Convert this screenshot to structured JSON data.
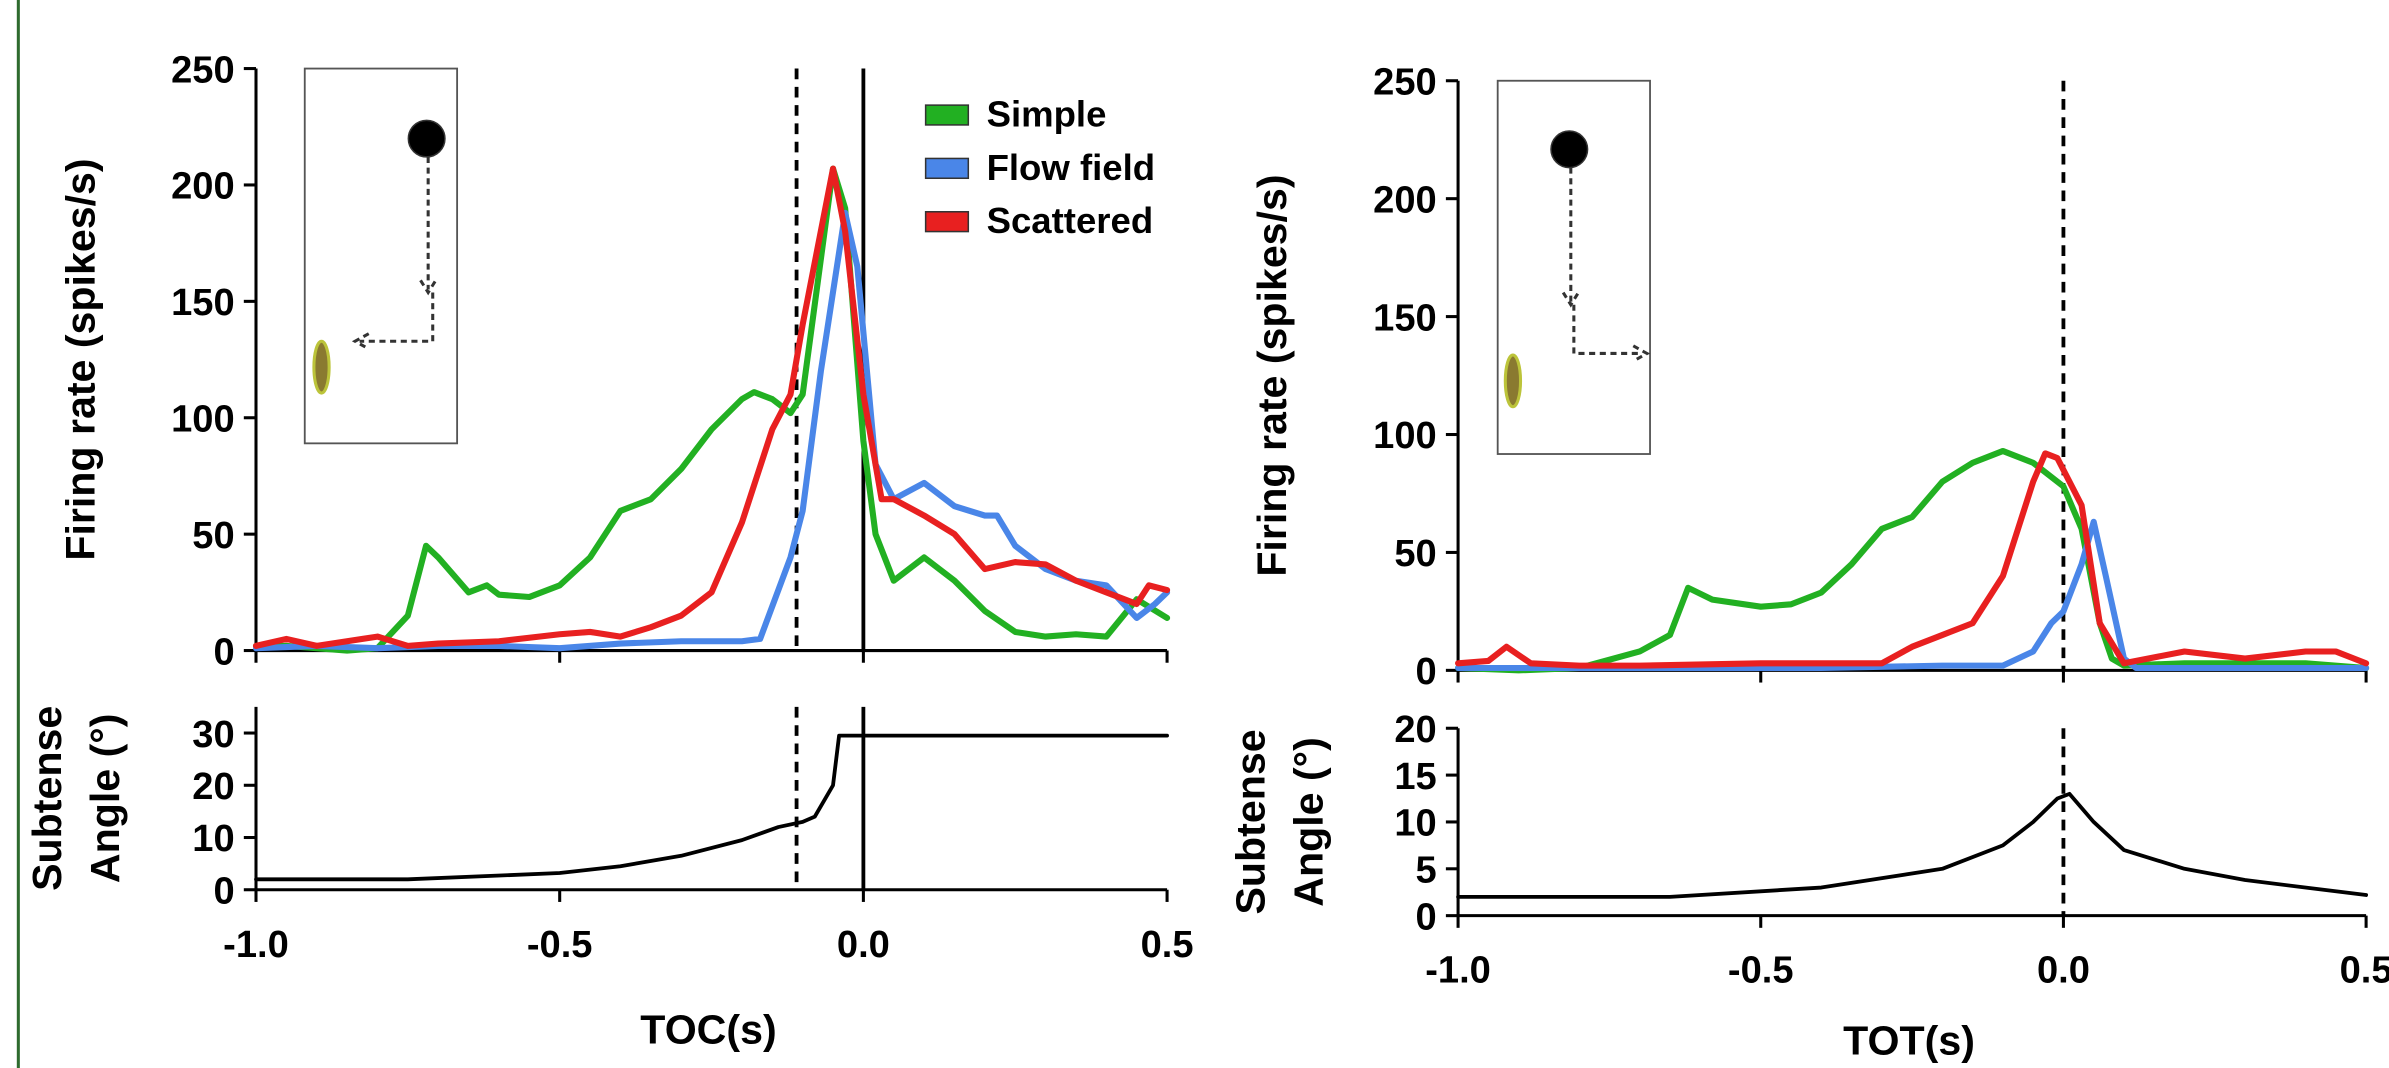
{
  "chart_data": [
    {
      "type": "line",
      "ylabel": [
        "Firing rate (spikes/s)"
      ],
      "xlim": [
        -1,
        0.5
      ],
      "ylim": [
        0,
        250
      ],
      "xticks": [
        -1,
        -0.5,
        0,
        0.5
      ],
      "show_xtick_labels": false,
      "yticks": [
        0,
        50,
        100,
        150,
        200,
        250
      ],
      "legend": "upper right",
      "vlines": [
        {
          "x": -0.11,
          "style": "dashed"
        },
        {
          "x": 0,
          "style": "solid"
        }
      ],
      "series": [
        {
          "name": "Simple",
          "color": "#22b022",
          "x": [
            -1.0,
            -0.95,
            -0.9,
            -0.85,
            -0.8,
            -0.75,
            -0.72,
            -0.7,
            -0.65,
            -0.62,
            -0.6,
            -0.55,
            -0.5,
            -0.45,
            -0.4,
            -0.35,
            -0.3,
            -0.25,
            -0.2,
            -0.18,
            -0.15,
            -0.12,
            -0.1,
            -0.05,
            -0.03,
            0,
            0.02,
            0.05,
            0.1,
            0.15,
            0.2,
            0.25,
            0.3,
            0.35,
            0.4,
            0.45,
            0.5
          ],
          "values": [
            2,
            2,
            1,
            0,
            1,
            15,
            45,
            40,
            25,
            28,
            24,
            23,
            28,
            40,
            60,
            65,
            78,
            95,
            108,
            111,
            108,
            102,
            110,
            207,
            190,
            90,
            50,
            30,
            40,
            30,
            17,
            8,
            6,
            7,
            6,
            22,
            14
          ]
        },
        {
          "name": "Flow field",
          "color": "#4a86e8",
          "x": [
            -1.0,
            -0.9,
            -0.8,
            -0.7,
            -0.6,
            -0.5,
            -0.4,
            -0.3,
            -0.2,
            -0.17,
            -0.12,
            -0.1,
            -0.07,
            -0.03,
            -0.01,
            0.02,
            0.05,
            0.1,
            0.15,
            0.2,
            0.22,
            0.25,
            0.3,
            0.35,
            0.4,
            0.45,
            0.48,
            0.5
          ],
          "values": [
            1,
            2,
            1,
            2,
            2,
            1,
            3,
            4,
            4,
            5,
            40,
            60,
            120,
            188,
            165,
            80,
            65,
            72,
            62,
            58,
            58,
            45,
            35,
            30,
            28,
            14,
            20,
            25
          ]
        },
        {
          "name": "Scattered",
          "color": "#e82020",
          "x": [
            -1.0,
            -0.95,
            -0.9,
            -0.8,
            -0.75,
            -0.7,
            -0.6,
            -0.5,
            -0.45,
            -0.4,
            -0.35,
            -0.3,
            -0.25,
            -0.2,
            -0.15,
            -0.12,
            -0.1,
            -0.05,
            -0.03,
            0,
            0.03,
            0.05,
            0.1,
            0.15,
            0.2,
            0.25,
            0.3,
            0.35,
            0.4,
            0.45,
            0.47,
            0.5
          ],
          "values": [
            2,
            5,
            2,
            6,
            2,
            3,
            4,
            7,
            8,
            6,
            10,
            15,
            25,
            55,
            95,
            110,
            140,
            207,
            180,
            110,
            65,
            65,
            58,
            50,
            35,
            38,
            37,
            30,
            25,
            20,
            28,
            26
          ]
        }
      ]
    },
    {
      "type": "line",
      "ylabel": [
        "Subtense",
        "Angle (°)"
      ],
      "xlabel": "TOC(s)",
      "xlim": [
        -1,
        0.5
      ],
      "ylim": [
        0,
        35
      ],
      "xticks": [
        {
          "value": -1,
          "label": "-1.0"
        },
        -0.5,
        {
          "value": 0,
          "label": "0.0"
        },
        0.5
      ],
      "show_xtick_labels": true,
      "yticks": [
        0,
        10,
        20,
        30
      ],
      "vlines": [
        {
          "x": -0.11,
          "style": "dashed"
        },
        {
          "x": 0,
          "style": "solid"
        }
      ],
      "series": [
        {
          "color": "#000000",
          "x": [
            -1.0,
            -0.75,
            -0.5,
            -0.4,
            -0.3,
            -0.2,
            -0.14,
            -0.1,
            -0.08,
            -0.05,
            -0.04,
            0.5
          ],
          "values": [
            2,
            2,
            3.2,
            4.5,
            6.5,
            9.5,
            12,
            13,
            14,
            20,
            29.5,
            29.5
          ]
        }
      ]
    },
    {
      "type": "line",
      "ylabel": [
        "Firing rate (spikes/s)"
      ],
      "xlim": [
        -1,
        0.5
      ],
      "ylim": [
        0,
        250
      ],
      "xticks": [
        -1,
        -0.5,
        0,
        0.5
      ],
      "show_xtick_labels": false,
      "yticks": [
        0,
        50,
        100,
        150,
        200,
        250
      ],
      "vlines": [
        {
          "x": 0,
          "style": "dashed"
        }
      ],
      "series": [
        {
          "color": "#22b022",
          "x": [
            -1.0,
            -0.9,
            -0.8,
            -0.7,
            -0.65,
            -0.62,
            -0.58,
            -0.5,
            -0.45,
            -0.4,
            -0.35,
            -0.3,
            -0.25,
            -0.2,
            -0.15,
            -0.1,
            -0.05,
            0,
            0.03,
            0.06,
            0.08,
            0.1,
            0.2,
            0.3,
            0.4,
            0.5
          ],
          "values": [
            1,
            0,
            1,
            8,
            15,
            35,
            30,
            27,
            28,
            33,
            45,
            60,
            65,
            80,
            88,
            93,
            88,
            78,
            60,
            20,
            5,
            2,
            3,
            3,
            3,
            1
          ]
        },
        {
          "color": "#4a86e8",
          "x": [
            -1.0,
            -0.8,
            -0.6,
            -0.4,
            -0.2,
            -0.1,
            -0.05,
            -0.02,
            0,
            0.03,
            0.05,
            0.07,
            0.1,
            0.12,
            0.3,
            0.5
          ],
          "values": [
            1,
            1,
            1,
            1,
            2,
            2,
            8,
            20,
            25,
            45,
            63,
            40,
            5,
            1,
            1,
            1
          ]
        },
        {
          "color": "#e82020",
          "x": [
            -1.0,
            -0.95,
            -0.92,
            -0.88,
            -0.8,
            -0.7,
            -0.5,
            -0.35,
            -0.3,
            -0.25,
            -0.2,
            -0.15,
            -0.1,
            -0.05,
            -0.03,
            -0.01,
            0.03,
            0.06,
            0.1,
            0.2,
            0.3,
            0.4,
            0.45,
            0.5
          ],
          "values": [
            3,
            4,
            10,
            3,
            2,
            2,
            3,
            3,
            3,
            10,
            15,
            20,
            40,
            80,
            92,
            90,
            70,
            20,
            3,
            8,
            5,
            8,
            8,
            3
          ]
        }
      ]
    },
    {
      "type": "line",
      "ylabel": [
        "Subtense",
        "Angle (°)"
      ],
      "xlabel": "TOT(s)",
      "xlim": [
        -1,
        0.5
      ],
      "ylim": [
        0,
        20
      ],
      "xticks": [
        {
          "value": -1,
          "label": "-1.0"
        },
        -0.5,
        {
          "value": 0,
          "label": "0.0"
        },
        0.5
      ],
      "show_xtick_labels": true,
      "yticks": [
        0,
        5,
        10,
        15,
        20
      ],
      "vlines": [
        {
          "x": 0,
          "style": "dashed"
        }
      ],
      "series": [
        {
          "color": "#000000",
          "x": [
            -1.0,
            -0.65,
            -0.4,
            -0.2,
            -0.1,
            -0.05,
            -0.01,
            0.01,
            0.05,
            0.1,
            0.2,
            0.3,
            0.5
          ],
          "values": [
            2,
            2,
            3,
            5,
            7.5,
            10,
            12.5,
            13,
            10,
            7,
            5,
            3.8,
            2.2
          ]
        }
      ]
    }
  ]
}
